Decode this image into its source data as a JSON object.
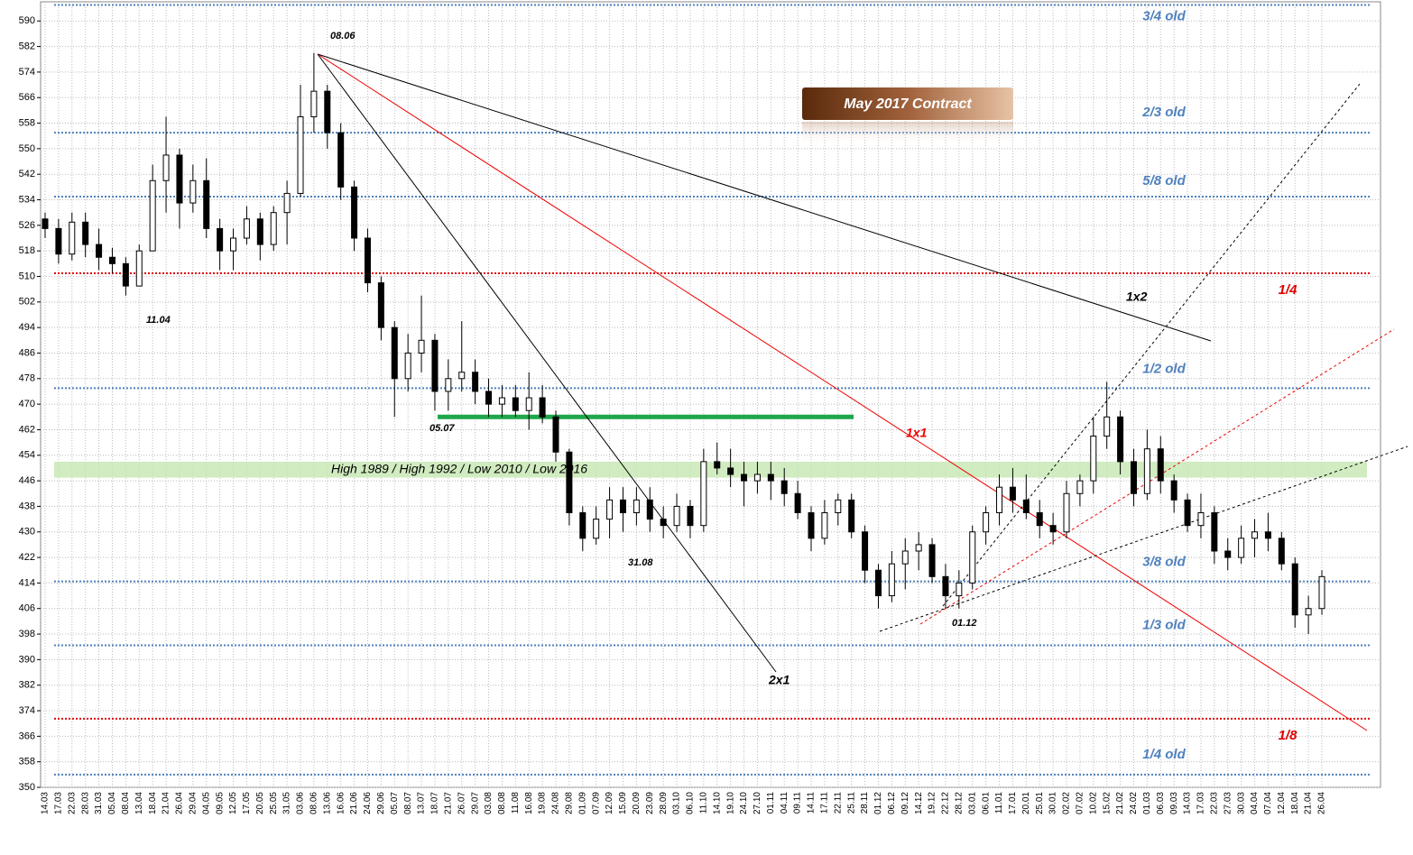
{
  "chart_data": {
    "type": "candlestick",
    "title": "May 2017 Contract",
    "categories": [
      "14.03",
      "17.03",
      "22.03",
      "28.03",
      "31.03",
      "05.04",
      "08.04",
      "13.04",
      "18.04",
      "21.04",
      "26.04",
      "29.04",
      "04.05",
      "09.05",
      "12.05",
      "17.05",
      "20.05",
      "25.05",
      "31.05",
      "03.06",
      "08.06",
      "13.06",
      "16.06",
      "21.06",
      "24.06",
      "29.06",
      "05.07",
      "08.07",
      "13.07",
      "18.07",
      "21.07",
      "26.07",
      "29.07",
      "03.08",
      "08.08",
      "11.08",
      "16.08",
      "19.08",
      "24.08",
      "29.08",
      "01.09",
      "07.09",
      "12.09",
      "15.09",
      "20.09",
      "23.09",
      "28.09",
      "03.10",
      "06.10",
      "11.10",
      "14.10",
      "19.10",
      "24.10",
      "27.10",
      "01.11",
      "04.11",
      "09.11",
      "14.11",
      "17.11",
      "22.11",
      "25.11",
      "28.11",
      "01.12",
      "06.12",
      "09.12",
      "14.12",
      "19.12",
      "22.12",
      "28.12",
      "03.01",
      "06.01",
      "11.01",
      "17.01",
      "20.01",
      "25.01",
      "30.01",
      "02.02",
      "07.02",
      "10.02",
      "15.02",
      "21.02",
      "24.02",
      "01.03",
      "06.03",
      "09.03",
      "14.03",
      "17.03",
      "22.03",
      "27.03",
      "30.03",
      "04.04",
      "07.04",
      "12.04",
      "18.04",
      "21.04",
      "26.04"
    ],
    "open": [
      528,
      525,
      517,
      527,
      520,
      516,
      514,
      507,
      518,
      540,
      548,
      533,
      540,
      525,
      518,
      522,
      528,
      520,
      530,
      536,
      560,
      568,
      555,
      538,
      522,
      508,
      494,
      478,
      486,
      490,
      474,
      478,
      480,
      474,
      470,
      472,
      468,
      472,
      466,
      455,
      436,
      428,
      434,
      440,
      436,
      440,
      434,
      432,
      438,
      432,
      452,
      450,
      448,
      446,
      448,
      446,
      442,
      436,
      428,
      436,
      440,
      430,
      418,
      410,
      420,
      424,
      426,
      416,
      410,
      414,
      430,
      436,
      444,
      440,
      436,
      432,
      430,
      442,
      446,
      460,
      466,
      452,
      442,
      456,
      446,
      440,
      432,
      436,
      424,
      422,
      428,
      430,
      428,
      420,
      404,
      406
    ],
    "high": [
      530,
      528,
      530,
      530,
      525,
      519,
      516,
      520,
      545,
      560,
      550,
      545,
      547,
      528,
      525,
      532,
      530,
      532,
      540,
      570,
      580,
      570,
      558,
      540,
      525,
      510,
      496,
      492,
      504,
      492,
      484,
      496,
      484,
      478,
      476,
      476,
      480,
      476,
      468,
      456,
      438,
      438,
      444,
      444,
      444,
      444,
      438,
      442,
      440,
      456,
      458,
      456,
      452,
      452,
      452,
      450,
      446,
      438,
      440,
      442,
      442,
      432,
      420,
      424,
      428,
      430,
      428,
      420,
      418,
      432,
      438,
      448,
      450,
      448,
      440,
      436,
      446,
      448,
      466,
      477,
      468,
      456,
      462,
      460,
      448,
      442,
      442,
      438,
      428,
      432,
      434,
      436,
      430,
      422,
      410,
      418
    ],
    "low": [
      522,
      514,
      515,
      516,
      512,
      511,
      504,
      508,
      518,
      530,
      525,
      530,
      522,
      512,
      512,
      520,
      515,
      518,
      520,
      535,
      555,
      550,
      534,
      518,
      505,
      490,
      466,
      474,
      480,
      468,
      468,
      474,
      470,
      466,
      466,
      466,
      462,
      464,
      452,
      432,
      424,
      426,
      428,
      430,
      432,
      430,
      428,
      430,
      428,
      430,
      448,
      444,
      438,
      442,
      440,
      438,
      434,
      424,
      426,
      432,
      428,
      414,
      406,
      408,
      412,
      418,
      414,
      406,
      406,
      412,
      426,
      432,
      436,
      434,
      428,
      426,
      428,
      438,
      442,
      456,
      448,
      438,
      440,
      442,
      436,
      430,
      428,
      420,
      418,
      420,
      422,
      424,
      418,
      400,
      398,
      404
    ],
    "close": [
      525,
      517,
      527,
      520,
      516,
      514,
      507,
      518,
      540,
      548,
      533,
      540,
      525,
      518,
      522,
      528,
      520,
      530,
      536,
      560,
      568,
      555,
      538,
      522,
      508,
      494,
      478,
      486,
      490,
      474,
      478,
      480,
      474,
      470,
      472,
      468,
      472,
      466,
      455,
      436,
      428,
      434,
      440,
      436,
      440,
      434,
      432,
      438,
      432,
      452,
      450,
      448,
      446,
      448,
      446,
      442,
      436,
      428,
      436,
      440,
      430,
      418,
      410,
      420,
      424,
      426,
      416,
      410,
      414,
      430,
      436,
      444,
      440,
      436,
      432,
      430,
      442,
      446,
      460,
      466,
      452,
      442,
      456,
      446,
      440,
      432,
      436,
      424,
      422,
      428,
      430,
      428,
      420,
      404,
      406,
      416
    ],
    "ylim": [
      350,
      596
    ],
    "yticks": [
      350,
      358,
      366,
      374,
      382,
      390,
      398,
      406,
      414,
      422,
      430,
      438,
      446,
      454,
      462,
      470,
      478,
      486,
      494,
      502,
      510,
      518,
      526,
      534,
      542,
      550,
      558,
      566,
      574,
      582,
      590
    ],
    "grid": true,
    "levels": [
      {
        "label": "3/4 old",
        "value": 595,
        "color": "#4f81bd"
      },
      {
        "label": "2/3 old",
        "value": 555,
        "color": "#4f81bd"
      },
      {
        "label": "5/8 old",
        "value": 535,
        "color": "#4f81bd"
      },
      {
        "label": "1/4",
        "value": 511,
        "color": "#e00000"
      },
      {
        "label": "1/2 old",
        "value": 475,
        "color": "#4f81bd"
      },
      {
        "label": "3/8 old",
        "value": 414.5,
        "color": "#4f81bd"
      },
      {
        "label": "1/3 old",
        "value": 394.5,
        "color": "#4f81bd"
      },
      {
        "label": "1/8",
        "value": 371.5,
        "color": "#e00000"
      },
      {
        "label": "1/4 old",
        "value": 354,
        "color": "#4f81bd"
      }
    ],
    "zone": {
      "label": "High 1989 / High 1992 / Low 2010 / Low 2016",
      "low": 447,
      "high": 452
    },
    "support": {
      "label": "05.07",
      "value": 466
    },
    "annotations": [
      "08.06",
      "11.04",
      "31.08",
      "01.12",
      "1x2",
      "1x1",
      "2x1"
    ]
  }
}
